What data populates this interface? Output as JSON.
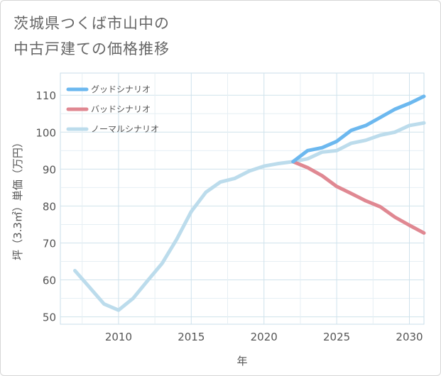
{
  "title_lines": [
    "茨城県つくば市山中の",
    "中古戸建ての価格推移"
  ],
  "chart_data": {
    "type": "line",
    "xlabel": "年",
    "ylabel": "坪（3.3㎡）単価（万円）",
    "xlim": [
      2006,
      2031
    ],
    "ylim": [
      48,
      116
    ],
    "xticks": [
      2010,
      2015,
      2020,
      2025,
      2030
    ],
    "yticks": [
      50,
      60,
      70,
      80,
      90,
      100,
      110
    ],
    "grid": true,
    "legend_position": "top-left",
    "series": [
      {
        "name": "グッドシナリオ",
        "color": "#6cb8ef",
        "x": [
          2022,
          2023,
          2024,
          2025,
          2026,
          2027,
          2028,
          2029,
          2030,
          2031
        ],
        "values": [
          92.0,
          95.0,
          95.8,
          97.5,
          100.5,
          101.8,
          104.0,
          106.2,
          107.8,
          109.7
        ]
      },
      {
        "name": "バッドシナリオ",
        "color": "#e08892",
        "x": [
          2022,
          2023,
          2024,
          2025,
          2026,
          2027,
          2028,
          2029,
          2030,
          2031
        ],
        "values": [
          92.0,
          90.4,
          88.2,
          85.3,
          83.4,
          81.4,
          79.8,
          77.0,
          74.8,
          72.7
        ]
      },
      {
        "name": "ノーマルシナリオ",
        "color": "#bcdcec",
        "x": [
          2007,
          2008,
          2009,
          2010,
          2011,
          2012,
          2013,
          2014,
          2015,
          2016,
          2017,
          2018,
          2019,
          2020,
          2021,
          2022,
          2023,
          2024,
          2025,
          2026,
          2027,
          2028,
          2029,
          2030,
          2031
        ],
        "values": [
          62.5,
          58.0,
          53.5,
          51.8,
          55.0,
          59.8,
          64.5,
          71.0,
          78.5,
          83.7,
          86.5,
          87.5,
          89.5,
          90.8,
          91.5,
          92.0,
          92.8,
          94.6,
          95.0,
          97.0,
          97.8,
          99.2,
          100.0,
          101.8,
          102.5
        ]
      }
    ]
  }
}
